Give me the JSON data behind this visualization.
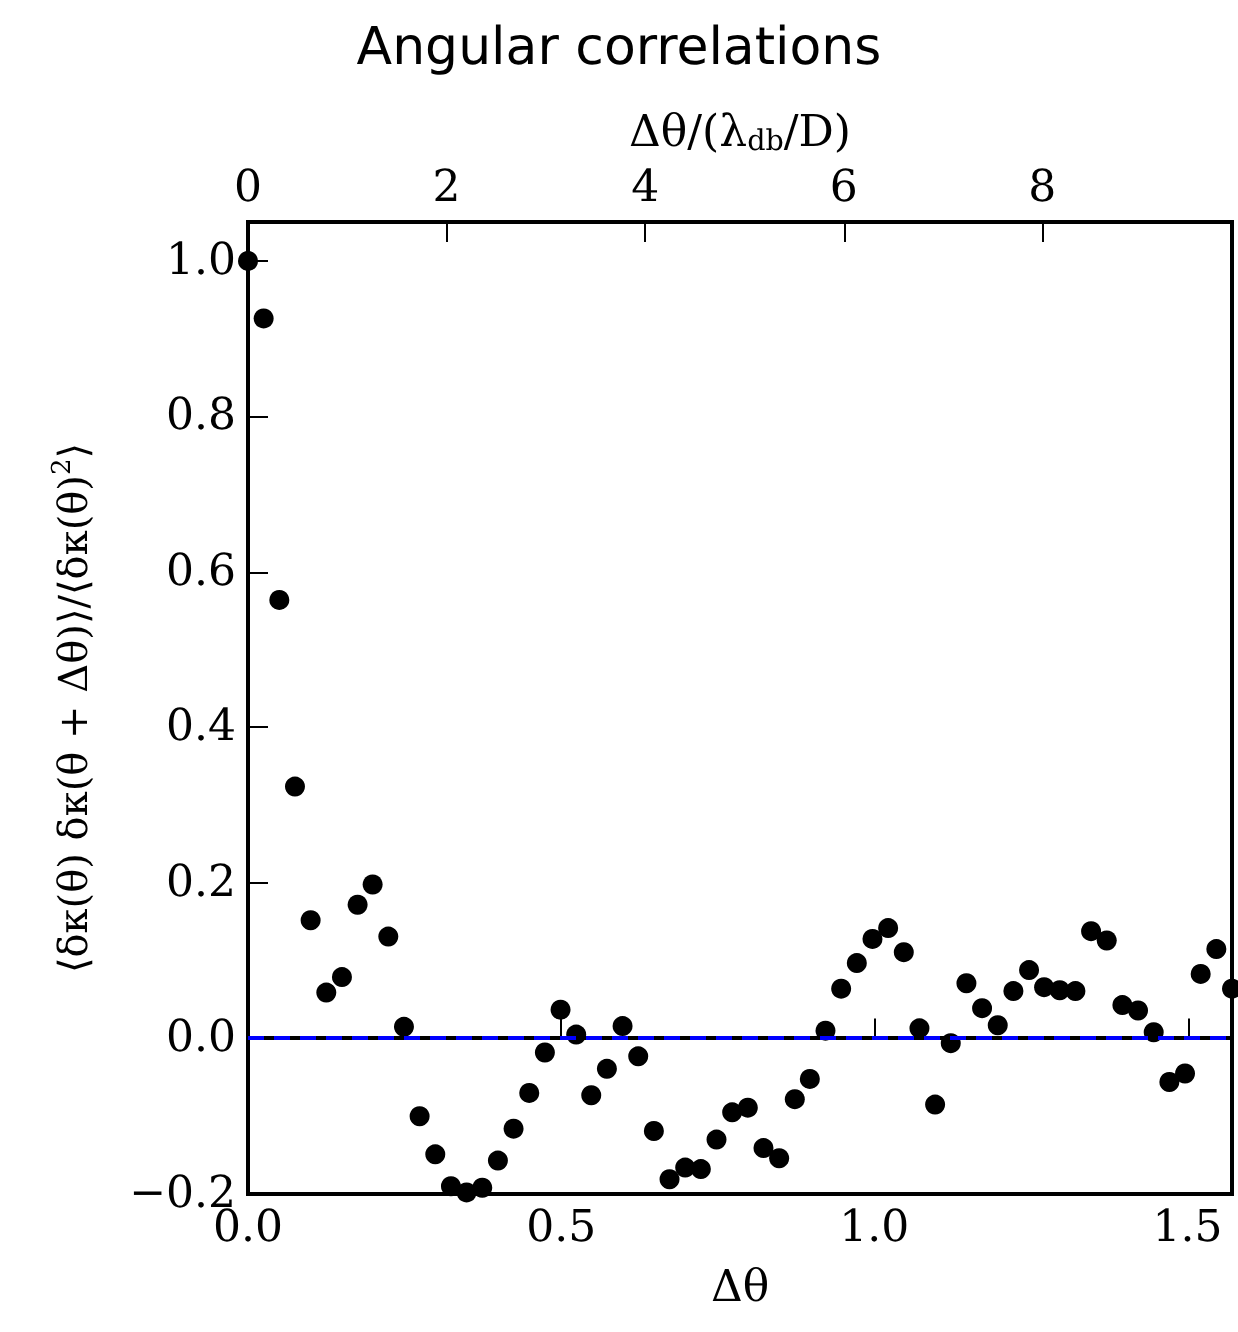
{
  "chart_data": {
    "type": "scatter",
    "title": "Angular correlations",
    "xlabel": "Δθ",
    "ylabel": "⟨δκ(θ) δκ(θ + Δθ)⟩/⟨δκ(θ)$^{2}$⟩",
    "x2label": "Δθ/(λ$_{db}$/D)",
    "x": [
      0,
      0.025,
      0.05,
      0.075,
      0.1,
      0.125,
      0.15,
      0.175,
      0.199,
      0.224,
      0.249,
      0.274,
      0.299,
      0.324,
      0.349,
      0.374,
      0.399,
      0.424,
      0.449,
      0.474,
      0.499,
      0.524,
      0.548,
      0.573,
      0.598,
      0.623,
      0.648,
      0.673,
      0.698,
      0.723,
      0.748,
      0.773,
      0.798,
      0.823,
      0.848,
      0.873,
      0.897,
      0.922,
      0.947,
      0.972,
      0.997,
      1.022,
      1.047,
      1.072,
      1.097,
      1.122,
      1.147,
      1.172,
      1.197,
      1.222,
      1.247,
      1.271,
      1.296,
      1.321,
      1.346,
      1.371,
      1.396,
      1.421,
      1.446,
      1.471,
      1.496,
      1.521,
      1.546,
      1.571
    ],
    "series": [
      {
        "color": "#000000",
        "values": [
          1.0,
          0.926,
          0.564,
          0.324,
          0.152,
          0.059,
          0.079,
          0.172,
          0.198,
          0.131,
          0.015,
          -0.1,
          -0.149,
          -0.19,
          -0.198,
          -0.192,
          -0.157,
          -0.116,
          -0.07,
          -0.018,
          0.037,
          0.005,
          -0.073,
          -0.039,
          0.016,
          -0.023,
          -0.119,
          -0.181,
          -0.166,
          -0.168,
          -0.13,
          -0.095,
          -0.089,
          -0.141,
          -0.154,
          -0.078,
          -0.052,
          0.01,
          0.064,
          0.097,
          0.128,
          0.142,
          0.111,
          0.013,
          -0.085,
          -0.006,
          0.071,
          0.039,
          0.017,
          0.061,
          0.088,
          0.066,
          0.062,
          0.061,
          0.138,
          0.126,
          0.043,
          0.036,
          0.008,
          -0.056,
          -0.045,
          0.083,
          0.115,
          0.064
        ]
      }
    ],
    "xlim": [
      0,
      1.571
    ],
    "xticks": [
      {
        "value": 0,
        "label": "0.0"
      },
      {
        "value": 0.5,
        "label": "0.5"
      },
      {
        "value": 1.0,
        "label": "1.0"
      },
      {
        "value": 1.5,
        "label": "1.5"
      }
    ],
    "x2lim": [
      0,
      9.91
    ],
    "x2ticks": [
      0,
      2,
      4,
      6,
      8
    ],
    "ylim": [
      -0.2,
      1.05
    ],
    "yticks": [
      {
        "value": -0.2,
        "label": "−0.2"
      },
      {
        "value": 0,
        "label": "0.0"
      },
      {
        "value": 0.2,
        "label": "0.2"
      },
      {
        "value": 0.4,
        "label": "0.4"
      },
      {
        "value": 0.6,
        "label": "0.6"
      },
      {
        "value": 0.8,
        "label": "0.8"
      },
      {
        "value": 1.0,
        "label": "1.0"
      }
    ],
    "ref_lines": [
      {
        "axis": "y",
        "value": 0,
        "color": "#0000ff",
        "line_style": "dashed"
      }
    ],
    "marker": "circle",
    "grid": false
  }
}
